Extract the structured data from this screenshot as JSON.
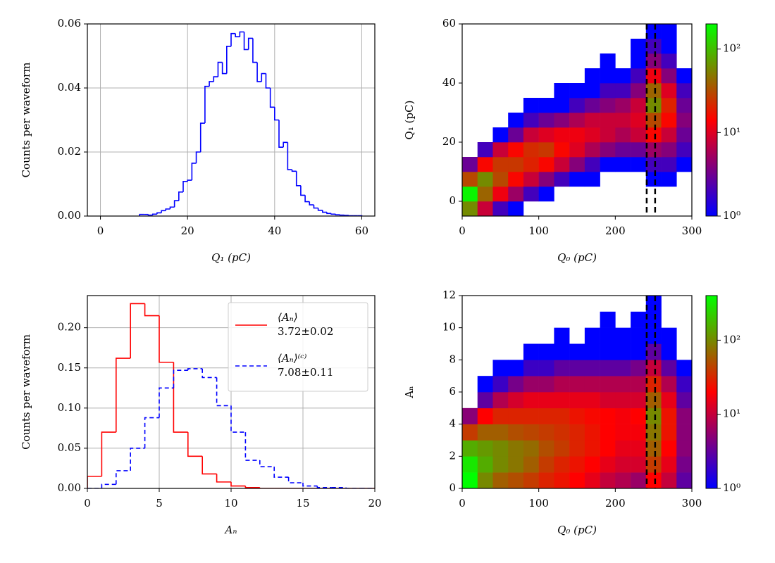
{
  "chart_data": [
    {
      "type": "histogram",
      "xlabel": "Q₁ (pC)",
      "ylabel": "Counts per waveform",
      "color": "#0000ff",
      "grid": true,
      "bins": [
        9,
        10,
        11,
        12,
        13,
        14,
        15,
        16,
        17,
        18,
        19,
        20,
        21,
        22,
        23,
        24,
        25,
        26,
        27,
        28,
        29,
        30,
        31,
        32,
        33,
        34,
        35,
        36,
        37,
        38,
        39,
        40,
        41,
        42,
        43,
        44,
        45,
        46,
        47,
        48,
        49,
        50,
        51,
        52,
        53,
        54,
        55,
        56,
        57,
        58,
        59,
        60
      ],
      "values": [
        0.0005,
        0.0005,
        0.0003,
        0.0006,
        0.001,
        0.0017,
        0.0022,
        0.0028,
        0.0048,
        0.0075,
        0.0108,
        0.0112,
        0.0165,
        0.02,
        0.029,
        0.0405,
        0.042,
        0.0435,
        0.048,
        0.0445,
        0.053,
        0.057,
        0.056,
        0.0575,
        0.052,
        0.0555,
        0.048,
        0.042,
        0.0445,
        0.04,
        0.034,
        0.03,
        0.0215,
        0.023,
        0.0145,
        0.014,
        0.0095,
        0.0065,
        0.0045,
        0.0035,
        0.0025,
        0.0018,
        0.0012,
        0.0008,
        0.0006,
        0.0004,
        0.0003,
        0.0002,
        0.0001,
        0.0001,
        0.0001
      ],
      "xlim": [
        -3,
        63
      ],
      "xticks": [
        0,
        20,
        40,
        60
      ],
      "ylim": [
        0,
        0.06
      ],
      "yticks": [
        {
          "value": 0,
          "label": "0.00"
        },
        {
          "value": 0.02,
          "label": "0.02"
        },
        {
          "value": 0.04,
          "label": "0.04"
        },
        {
          "value": 0.06,
          "label": "0.06"
        }
      ]
    },
    {
      "type": "heatmap",
      "xlabel": "Q₀ (pC)",
      "ylabel": "Q₁ (pC)",
      "log_color": true,
      "colormap": [
        "#0000ff",
        "#ff0000",
        "#00ff00"
      ],
      "xbins": [
        0,
        20,
        40,
        60,
        80,
        100,
        120,
        140,
        160,
        180,
        200,
        220,
        240,
        260,
        280,
        300
      ],
      "ybins": [
        -5,
        0,
        5,
        10,
        15,
        20,
        25,
        30,
        35,
        40,
        45,
        50,
        55,
        60
      ],
      "values": [
        [
          60,
          8,
          2,
          1,
          null,
          null,
          null,
          null,
          null,
          null,
          null,
          null,
          null,
          null,
          null
        ],
        [
          180,
          40,
          12,
          5,
          2,
          1,
          null,
          null,
          null,
          null,
          null,
          null,
          null,
          null,
          null
        ],
        [
          30,
          60,
          30,
          15,
          8,
          4,
          2,
          1,
          1,
          null,
          null,
          null,
          1,
          1,
          null
        ],
        [
          3,
          15,
          25,
          25,
          20,
          15,
          8,
          4,
          2,
          1,
          1,
          1,
          2,
          2,
          1
        ],
        [
          null,
          2,
          8,
          15,
          22,
          25,
          15,
          10,
          6,
          4,
          3,
          3,
          5,
          4,
          2
        ],
        [
          null,
          null,
          1,
          3,
          8,
          10,
          12,
          12,
          10,
          8,
          6,
          8,
          15,
          8,
          3
        ],
        [
          null,
          null,
          null,
          1,
          2,
          3,
          4,
          6,
          8,
          8,
          8,
          10,
          30,
          15,
          4
        ],
        [
          null,
          null,
          null,
          null,
          1,
          1,
          1,
          2,
          3,
          4,
          5,
          8,
          60,
          20,
          3
        ],
        [
          null,
          null,
          null,
          null,
          null,
          null,
          1,
          1,
          1,
          2,
          2,
          4,
          40,
          10,
          2
        ],
        [
          null,
          null,
          null,
          null,
          null,
          null,
          null,
          null,
          1,
          1,
          1,
          2,
          12,
          4,
          1
        ],
        [
          null,
          null,
          null,
          null,
          null,
          null,
          null,
          null,
          null,
          1,
          null,
          1,
          4,
          2,
          null
        ],
        [
          null,
          null,
          null,
          null,
          null,
          null,
          null,
          null,
          null,
          null,
          null,
          1,
          2,
          1,
          null
        ],
        [
          null,
          null,
          null,
          null,
          null,
          null,
          null,
          null,
          null,
          null,
          null,
          null,
          1,
          1,
          null
        ]
      ],
      "xlim": [
        0,
        300
      ],
      "xticks": [
        0,
        100,
        200,
        300
      ],
      "ylim": [
        -5,
        60
      ],
      "yticks": [
        0,
        20,
        40,
        60
      ],
      "vlines": [
        241,
        252
      ],
      "vline_color": "#000000",
      "clim": [
        1,
        200
      ],
      "cticks": [
        {
          "value": 1,
          "label": "10⁰"
        },
        {
          "value": 10,
          "label": "10¹"
        },
        {
          "value": 100,
          "label": "10²"
        }
      ]
    },
    {
      "type": "histogram",
      "xlabel": "Aₙ",
      "ylabel": "Counts per waveform",
      "grid": true,
      "legend": "upper right",
      "bins": [
        0,
        1,
        2,
        3,
        4,
        5,
        6,
        7,
        8,
        9,
        10,
        11,
        12,
        13,
        14,
        15,
        16,
        17,
        18,
        19,
        20
      ],
      "series": [
        {
          "name": "⟨Aₙ⟩",
          "annotation": "3.72±0.02",
          "color": "#ff0000",
          "linestyle": "solid",
          "values": [
            0.015,
            0.07,
            0.162,
            0.23,
            0.215,
            0.157,
            0.07,
            0.04,
            0.018,
            0.008,
            0.003,
            0.001,
            0,
            0,
            0,
            0,
            0,
            0,
            0,
            0
          ]
        },
        {
          "name": "⟨Aₙ⟩⁽ᶜ⁾",
          "annotation": "7.08±0.11",
          "color": "#0000ff",
          "linestyle": "dashed",
          "values": [
            0,
            0.005,
            0.022,
            0.05,
            0.088,
            0.125,
            0.147,
            0.149,
            0.138,
            0.103,
            0.07,
            0.035,
            0.027,
            0.014,
            0.007,
            0.003,
            0.001,
            0.001,
            0,
            0
          ]
        }
      ],
      "xlim": [
        0,
        20
      ],
      "xticks": [
        0,
        5,
        10,
        15,
        20
      ],
      "ylim": [
        0,
        0.24
      ],
      "yticks": [
        {
          "value": 0,
          "label": "0.00"
        },
        {
          "value": 0.05,
          "label": "0.05"
        },
        {
          "value": 0.1,
          "label": "0.10"
        },
        {
          "value": 0.15,
          "label": "0.15"
        },
        {
          "value": 0.2,
          "label": "0.20"
        }
      ]
    },
    {
      "type": "heatmap",
      "xlabel": "Q₀ (pC)",
      "ylabel": "Aₙ",
      "log_color": true,
      "colormap": [
        "#0000ff",
        "#ff0000",
        "#00ff00"
      ],
      "xbins": [
        0,
        20,
        40,
        60,
        80,
        100,
        120,
        140,
        160,
        180,
        200,
        220,
        240,
        260,
        280,
        300
      ],
      "ybins": [
        0,
        1,
        2,
        3,
        4,
        5,
        6,
        7,
        8,
        9,
        10,
        11,
        12
      ],
      "values": [
        [
          400,
          100,
          60,
          50,
          40,
          30,
          25,
          20,
          15,
          10,
          8,
          6,
          20,
          10,
          3
        ],
        [
          300,
          150,
          100,
          80,
          60,
          40,
          30,
          25,
          20,
          15,
          12,
          12,
          40,
          15,
          4
        ],
        [
          150,
          120,
          100,
          80,
          70,
          50,
          40,
          30,
          25,
          20,
          15,
          15,
          60,
          20,
          5
        ],
        [
          40,
          60,
          60,
          50,
          45,
          40,
          35,
          30,
          25,
          20,
          18,
          18,
          80,
          25,
          5
        ],
        [
          5,
          20,
          30,
          30,
          30,
          30,
          30,
          25,
          22,
          20,
          18,
          20,
          100,
          25,
          5
        ],
        [
          null,
          3,
          8,
          12,
          15,
          15,
          15,
          15,
          15,
          12,
          12,
          12,
          60,
          15,
          3
        ],
        [
          null,
          1,
          2,
          4,
          6,
          6,
          8,
          8,
          8,
          8,
          8,
          8,
          30,
          8,
          2
        ],
        [
          null,
          null,
          1,
          1,
          2,
          2,
          3,
          3,
          3,
          3,
          3,
          4,
          10,
          3,
          1
        ],
        [
          null,
          null,
          null,
          null,
          1,
          1,
          1,
          1,
          1,
          1,
          1,
          1,
          3,
          1,
          null
        ],
        [
          null,
          null,
          null,
          null,
          null,
          null,
          1,
          null,
          1,
          1,
          1,
          1,
          1,
          1,
          null
        ],
        [
          null,
          null,
          null,
          null,
          null,
          null,
          null,
          null,
          null,
          1,
          null,
          1,
          1,
          null,
          null
        ],
        [
          null,
          null,
          null,
          null,
          null,
          null,
          null,
          null,
          null,
          null,
          null,
          null,
          1,
          null,
          null
        ]
      ],
      "xlim": [
        0,
        300
      ],
      "xticks": [
        0,
        100,
        200,
        300
      ],
      "ylim": [
        0,
        12
      ],
      "yticks": [
        0,
        2,
        4,
        6,
        8,
        10,
        12
      ],
      "vlines": [
        241,
        252
      ],
      "vline_color": "#000000",
      "clim": [
        1,
        400
      ],
      "cticks": [
        {
          "value": 1,
          "label": "10⁰"
        },
        {
          "value": 10,
          "label": "10¹"
        },
        {
          "value": 100,
          "label": "10²"
        }
      ]
    }
  ]
}
